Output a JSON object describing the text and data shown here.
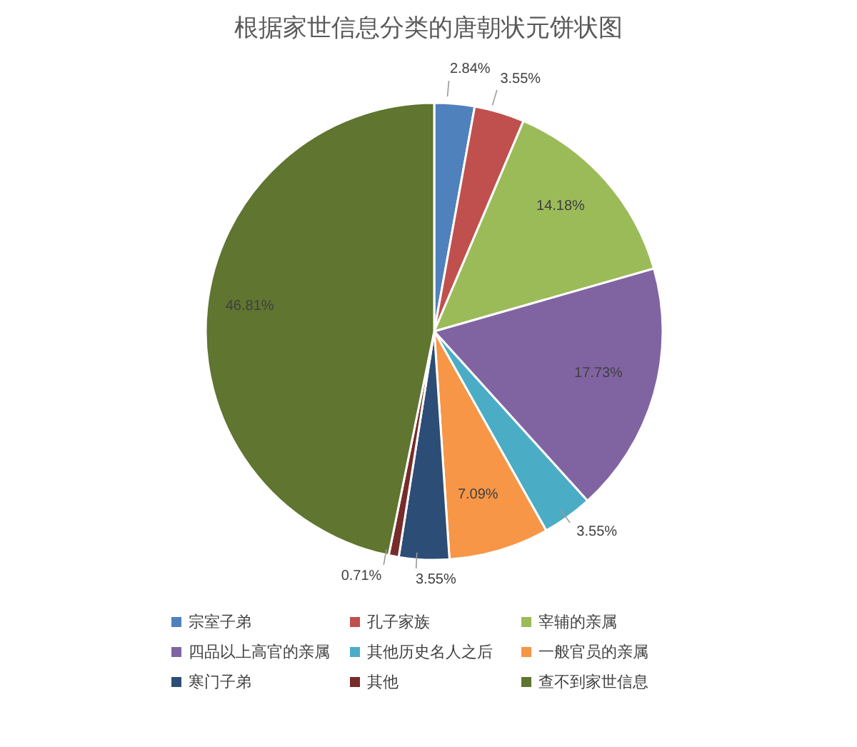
{
  "chart_data": {
    "type": "pie",
    "title": "根据家世信息分类的唐朝状元饼状图",
    "categories": [
      "宗室子弟",
      "孔子家族",
      "宰辅的亲属",
      "四品以上高官的亲属",
      "其他历史名人之后",
      "一般官员的亲属",
      "寒门子弟",
      "其他",
      "查不到家世信息"
    ],
    "values": [
      2.84,
      3.55,
      14.18,
      17.73,
      3.55,
      7.09,
      3.55,
      0.71,
      46.81
    ],
    "value_labels": [
      "2.84%",
      "3.55%",
      "14.18%",
      "17.73%",
      "3.55%",
      "7.09%",
      "3.55%",
      "0.71%",
      "46.81%"
    ],
    "colors": [
      "#4f81bd",
      "#c0504d",
      "#9bbb59",
      "#8064a2",
      "#4bacc6",
      "#f79646",
      "#2c4d75",
      "#772c2a",
      "#5f7530"
    ],
    "legend": "bottom"
  }
}
